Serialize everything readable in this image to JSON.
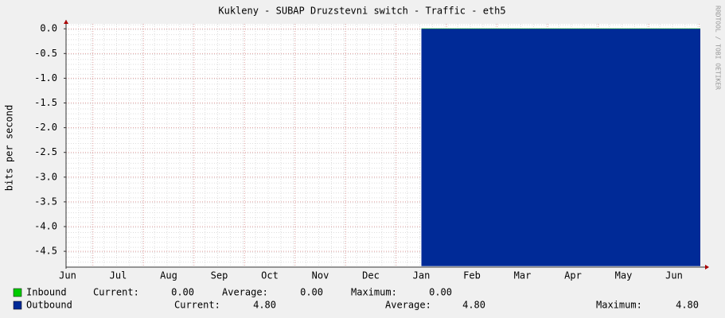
{
  "chart_data": {
    "type": "area",
    "title": "Kukleny - SUBAP Druzstevni switch - Traffic - eth5",
    "y_label": "bits per second",
    "watermark": "RRDTOOL / TOBI OETIKER",
    "categories": [
      "Jun",
      "Jul",
      "Aug",
      "Sep",
      "Oct",
      "Nov",
      "Dec",
      "Jan",
      "Feb",
      "Mar",
      "Apr",
      "May",
      "Jun"
    ],
    "ylim": [
      -4.82,
      0.1
    ],
    "yticks": [
      {
        "value": 0,
        "label": "0.0"
      },
      {
        "value": -0.5,
        "label": "-0.5"
      },
      {
        "value": -1,
        "label": "-1.0"
      },
      {
        "value": -1.5,
        "label": "-1.5"
      },
      {
        "value": -2,
        "label": "-2.0"
      },
      {
        "value": -2.5,
        "label": "-2.5"
      },
      {
        "value": -3,
        "label": "-3.0"
      },
      {
        "value": -3.5,
        "label": "-3.5"
      },
      {
        "value": -4,
        "label": "-4.0"
      },
      {
        "value": -4.5,
        "label": "-4.5"
      }
    ],
    "grid": true,
    "series": [
      {
        "name": "Inbound",
        "color": "#00cc00",
        "values": [
          null,
          null,
          null,
          null,
          null,
          null,
          null,
          0,
          0,
          0,
          0,
          0,
          0
        ],
        "stats": [
          {
            "label": "Current:",
            "value": "0.00"
          },
          {
            "label": "Average:",
            "value": "0.00"
          },
          {
            "label": "Maximum:",
            "value": "0.00"
          }
        ]
      },
      {
        "name": "Outbound",
        "color": "#002a97",
        "values": [
          null,
          null,
          null,
          null,
          null,
          null,
          null,
          -4.8,
          -4.8,
          -4.8,
          -4.8,
          -4.8,
          -4.8
        ],
        "stats": [
          {
            "label": "Current:",
            "value": "4.80"
          },
          {
            "label": "Average:",
            "value": "4.80"
          },
          {
            "label": "Maximum:",
            "value": "4.80"
          }
        ]
      }
    ]
  }
}
